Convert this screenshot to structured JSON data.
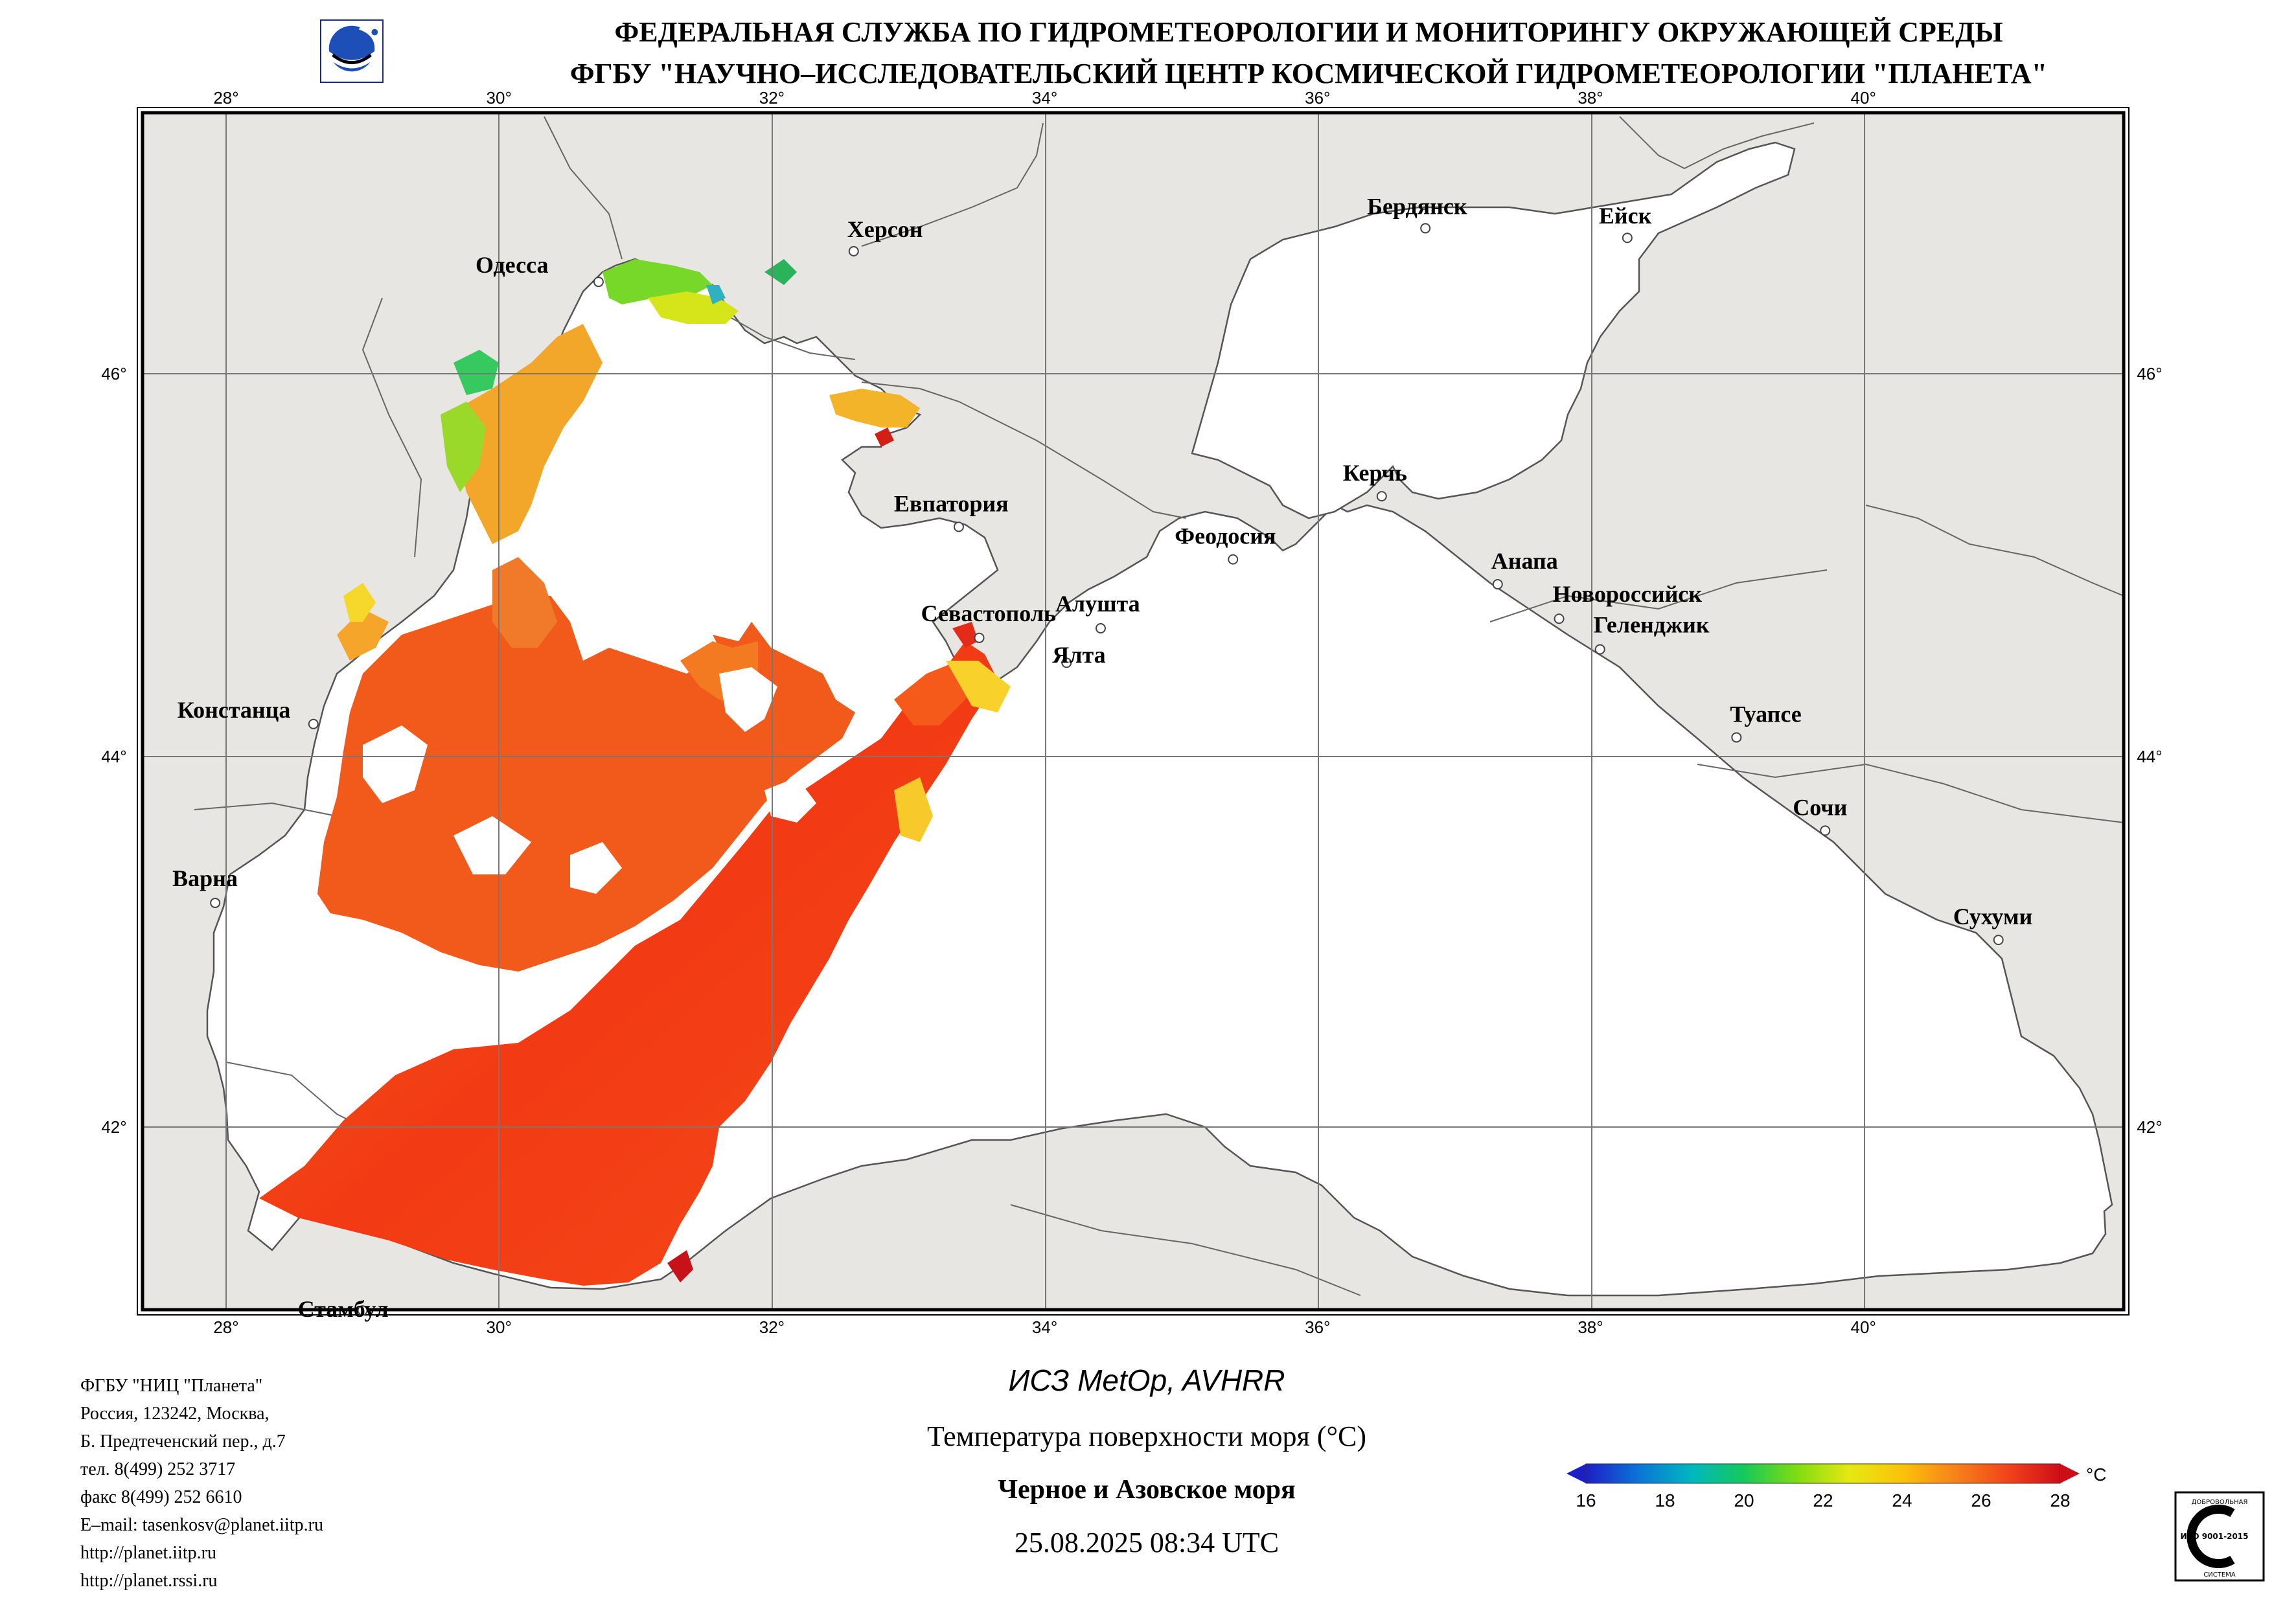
{
  "header": {
    "line1": "ФЕДЕРАЛЬНАЯ СЛУЖБА ПО ГИДРОМЕТЕОРОЛОГИИ И МОНИТОРИНГУ ОКРУЖАЮЩЕЙ СРЕДЫ",
    "line2": "ФГБУ \"НАУЧНО–ИССЛЕДОВАТЕЛЬСКИЙ ЦЕНТР КОСМИЧЕСКОЙ ГИДРОМЕТЕОРОЛОГИИ \"ПЛАНЕТА\""
  },
  "map": {
    "lon_ticks": [
      "28°",
      "30°",
      "32°",
      "34°",
      "36°",
      "38°",
      "40°"
    ],
    "lat_ticks": [
      "46°",
      "44°",
      "42°"
    ],
    "lon_values": [
      28,
      30,
      32,
      34,
      36,
      38,
      40
    ],
    "lat_values": [
      46,
      44,
      42
    ],
    "extent": {
      "lon_min": 27.4,
      "lon_max": 41.95,
      "lat_min": 40.95,
      "lat_max": 47.35
    },
    "colors": {
      "land": "#e8e6e2",
      "water_no_data": "#ffffff",
      "grid": "#777777",
      "coast": "#555555",
      "frame": "#000000"
    },
    "cities": [
      {
        "name": "Одесса",
        "lon": 30.73,
        "lat": 46.48
      },
      {
        "name": "Херсон",
        "lon": 32.6,
        "lat": 46.64
      },
      {
        "name": "Бердянск",
        "lon": 36.79,
        "lat": 46.76
      },
      {
        "name": "Ейск",
        "lon": 38.27,
        "lat": 46.71
      },
      {
        "name": "Евпатория",
        "lon": 33.37,
        "lat": 45.2
      },
      {
        "name": "Керчь",
        "lon": 36.47,
        "lat": 45.36
      },
      {
        "name": "Феодосия",
        "lon": 35.38,
        "lat": 45.03
      },
      {
        "name": "Анапа",
        "lon": 37.32,
        "lat": 44.9
      },
      {
        "name": "Новороссийск",
        "lon": 37.77,
        "lat": 44.72
      },
      {
        "name": "Геленджик",
        "lon": 38.07,
        "lat": 44.56
      },
      {
        "name": "Севастополь",
        "lon": 33.52,
        "lat": 44.62
      },
      {
        "name": "Алушта",
        "lon": 34.41,
        "lat": 44.67
      },
      {
        "name": "Ялта",
        "lon": 34.16,
        "lat": 44.49
      },
      {
        "name": "Констанца",
        "lon": 28.64,
        "lat": 44.17
      },
      {
        "name": "Туапсе",
        "lon": 39.07,
        "lat": 44.1
      },
      {
        "name": "Сочи",
        "lon": 39.72,
        "lat": 43.6
      },
      {
        "name": "Варна",
        "lon": 27.92,
        "lat": 43.21
      },
      {
        "name": "Сухуми",
        "lon": 40.99,
        "lat": 43.01
      },
      {
        "name": "Стамбул",
        "lon": 29.0,
        "lat": 41.01
      }
    ]
  },
  "footer": {
    "org_lines": [
      "ФГБУ \"НИЦ \"Планета\"",
      "Россия, 123242, Москва,",
      "Б. Предтеченский пер., д.7",
      "тел. 8(499) 252 3717",
      "факс 8(499) 252 6610",
      "E–mail: tasenkosv@planet.iitp.ru",
      "http://planet.iitp.ru",
      "http://planet.rssi.ru"
    ],
    "satellite": "ИСЗ MetOp, AVHRR",
    "parameter": "Температура поверхности моря (°C)",
    "region": "Черное и Азовское моря",
    "datetime": "25.08.2025 08:34 UTC"
  },
  "colorbar": {
    "unit": "°C",
    "ticks": [
      "16",
      "18",
      "20",
      "22",
      "24",
      "26",
      "28"
    ],
    "min": 16,
    "max": 28,
    "stops": [
      "#1c1fc6",
      "#0b74d8",
      "#00b7c0",
      "#15c95a",
      "#7fdc12",
      "#e6e812",
      "#fcc20a",
      "#f7821b",
      "#f2441a",
      "#cf0d18"
    ]
  },
  "iso_badge": {
    "top_text": "ДОБРОВОЛЬНАЯ",
    "mid_text": "ИСО 9001-2015",
    "bottom_text": "СИСТЕМА"
  }
}
